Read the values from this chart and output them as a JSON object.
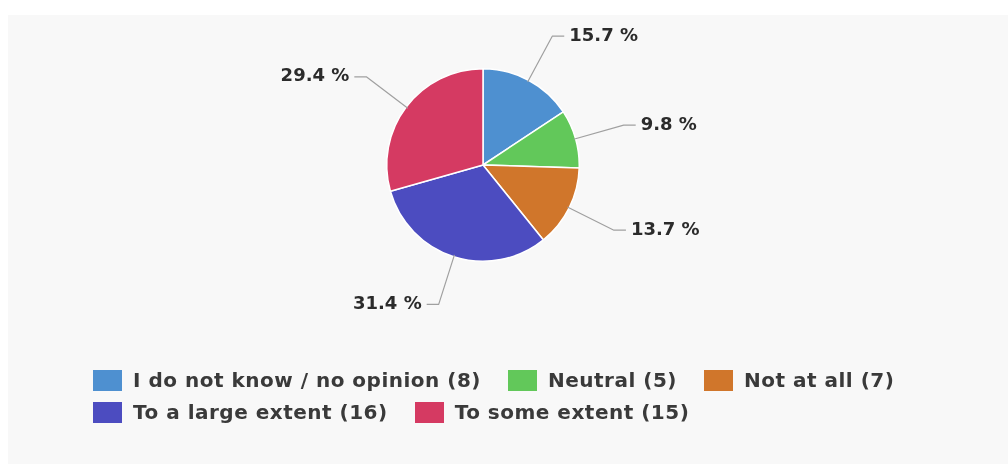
{
  "chart_data": {
    "type": "pie",
    "categories": [
      "I do not know / no opinion (8)",
      "Neutral (5)",
      "Not at all (7)",
      "To a large extent (16)",
      "To some extent (15)"
    ],
    "values": [
      15.7,
      9.8,
      13.7,
      31.4,
      29.4
    ],
    "colors": [
      "#4e90d0",
      "#62c85a",
      "#d0762b",
      "#4c4cc0",
      "#d53a62"
    ],
    "value_labels": [
      "15.7 %",
      "9.8 %",
      "13.7 %",
      "31.4 %",
      "29.4 %"
    ],
    "legend": "bottom"
  }
}
